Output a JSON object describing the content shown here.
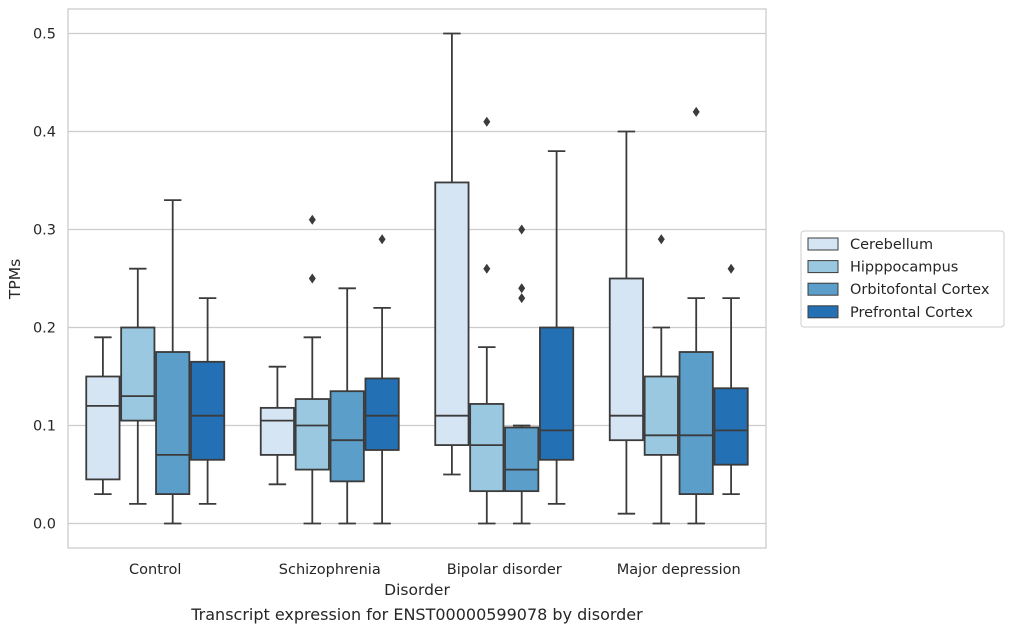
{
  "chart_data": {
    "type": "box",
    "xlabel": "Disorder",
    "ylabel": "TPMs",
    "caption": "Transcript expression for ENST00000599078 by disorder",
    "categories": [
      "Control",
      "Schizophrenia",
      "Bipolar disorder",
      "Major depression"
    ],
    "ylim": [
      -0.025,
      0.525
    ],
    "yticks": [
      0.0,
      0.1,
      0.2,
      0.3,
      0.4,
      0.5
    ],
    "ytick_labels": [
      "0.0",
      "0.1",
      "0.2",
      "0.3",
      "0.4",
      "0.5"
    ],
    "grid": "horizontal",
    "legend_position": "right",
    "series": [
      {
        "name": "Cerebellum",
        "color": "#d6e5f4",
        "boxes": [
          {
            "whislo": 0.03,
            "q1": 0.045,
            "med": 0.12,
            "q3": 0.15,
            "whishi": 0.19,
            "fliers": []
          },
          {
            "whislo": 0.04,
            "q1": 0.07,
            "med": 0.105,
            "q3": 0.118,
            "whishi": 0.16,
            "fliers": []
          },
          {
            "whislo": 0.05,
            "q1": 0.08,
            "med": 0.11,
            "q3": 0.348,
            "whishi": 0.5,
            "fliers": []
          },
          {
            "whislo": 0.01,
            "q1": 0.085,
            "med": 0.11,
            "q3": 0.25,
            "whishi": 0.4,
            "fliers": []
          }
        ]
      },
      {
        "name": "Hipppocampus",
        "color": "#9ac8e0",
        "boxes": [
          {
            "whislo": 0.02,
            "q1": 0.105,
            "med": 0.13,
            "q3": 0.2,
            "whishi": 0.26,
            "fliers": []
          },
          {
            "whislo": 0.0,
            "q1": 0.055,
            "med": 0.1,
            "q3": 0.127,
            "whishi": 0.19,
            "fliers": [
              0.25,
              0.31
            ]
          },
          {
            "whislo": 0.0,
            "q1": 0.033,
            "med": 0.08,
            "q3": 0.122,
            "whishi": 0.18,
            "fliers": [
              0.26,
              0.41
            ]
          },
          {
            "whislo": 0.0,
            "q1": 0.07,
            "med": 0.09,
            "q3": 0.15,
            "whishi": 0.2,
            "fliers": [
              0.29
            ]
          }
        ]
      },
      {
        "name": "Orbitofontal Cortex",
        "color": "#5a9ec9",
        "boxes": [
          {
            "whislo": 0.0,
            "q1": 0.03,
            "med": 0.07,
            "q3": 0.175,
            "whishi": 0.33,
            "fliers": []
          },
          {
            "whislo": 0.0,
            "q1": 0.043,
            "med": 0.085,
            "q3": 0.135,
            "whishi": 0.24,
            "fliers": []
          },
          {
            "whislo": 0.0,
            "q1": 0.033,
            "med": 0.055,
            "q3": 0.098,
            "whishi": 0.1,
            "fliers": [
              0.23,
              0.24,
              0.3
            ]
          },
          {
            "whislo": 0.0,
            "q1": 0.03,
            "med": 0.09,
            "q3": 0.175,
            "whishi": 0.23,
            "fliers": [
              0.42
            ]
          }
        ]
      },
      {
        "name": "Prefrontal Cortex",
        "color": "#2470b4",
        "boxes": [
          {
            "whislo": 0.02,
            "q1": 0.065,
            "med": 0.11,
            "q3": 0.165,
            "whishi": 0.23,
            "fliers": []
          },
          {
            "whislo": 0.0,
            "q1": 0.075,
            "med": 0.11,
            "q3": 0.148,
            "whishi": 0.22,
            "fliers": [
              0.29
            ]
          },
          {
            "whislo": 0.02,
            "q1": 0.065,
            "med": 0.095,
            "q3": 0.2,
            "whishi": 0.38,
            "fliers": []
          },
          {
            "whislo": 0.03,
            "q1": 0.06,
            "med": 0.095,
            "q3": 0.138,
            "whishi": 0.23,
            "fliers": [
              0.26
            ]
          }
        ]
      }
    ]
  }
}
